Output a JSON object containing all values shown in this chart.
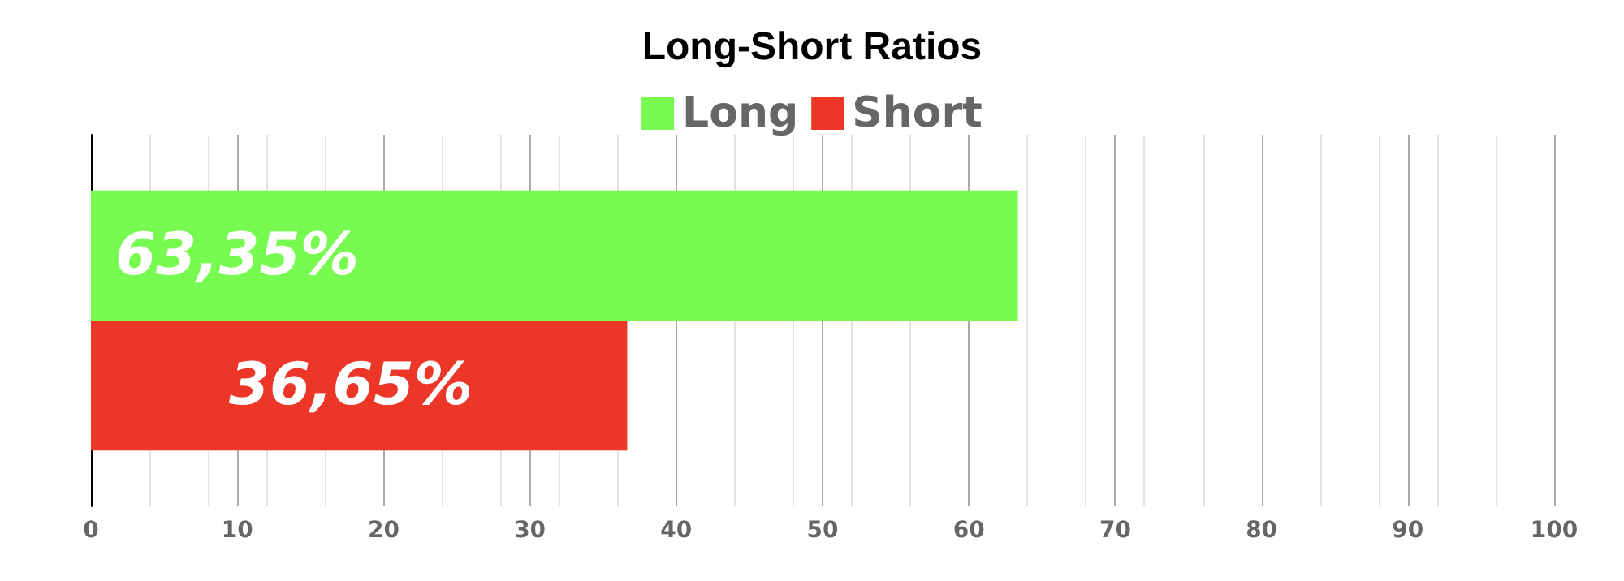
{
  "chart_data": {
    "type": "bar",
    "title": "Long-Short Ratios",
    "orientation": "horizontal",
    "categories": [
      null
    ],
    "series": [
      {
        "name": "Long",
        "color": "#77fb50",
        "values": [
          63.35
        ],
        "value_labels": [
          "63,35%"
        ]
      },
      {
        "name": "Short",
        "color": "#ec3628",
        "values": [
          36.65
        ],
        "value_labels": [
          "36,65%"
        ]
      }
    ],
    "xlim": [
      0,
      100
    ],
    "xticks": [
      0,
      10,
      20,
      30,
      40,
      50,
      60,
      70,
      80,
      90,
      100
    ],
    "grid": "x",
    "legend": "top"
  }
}
